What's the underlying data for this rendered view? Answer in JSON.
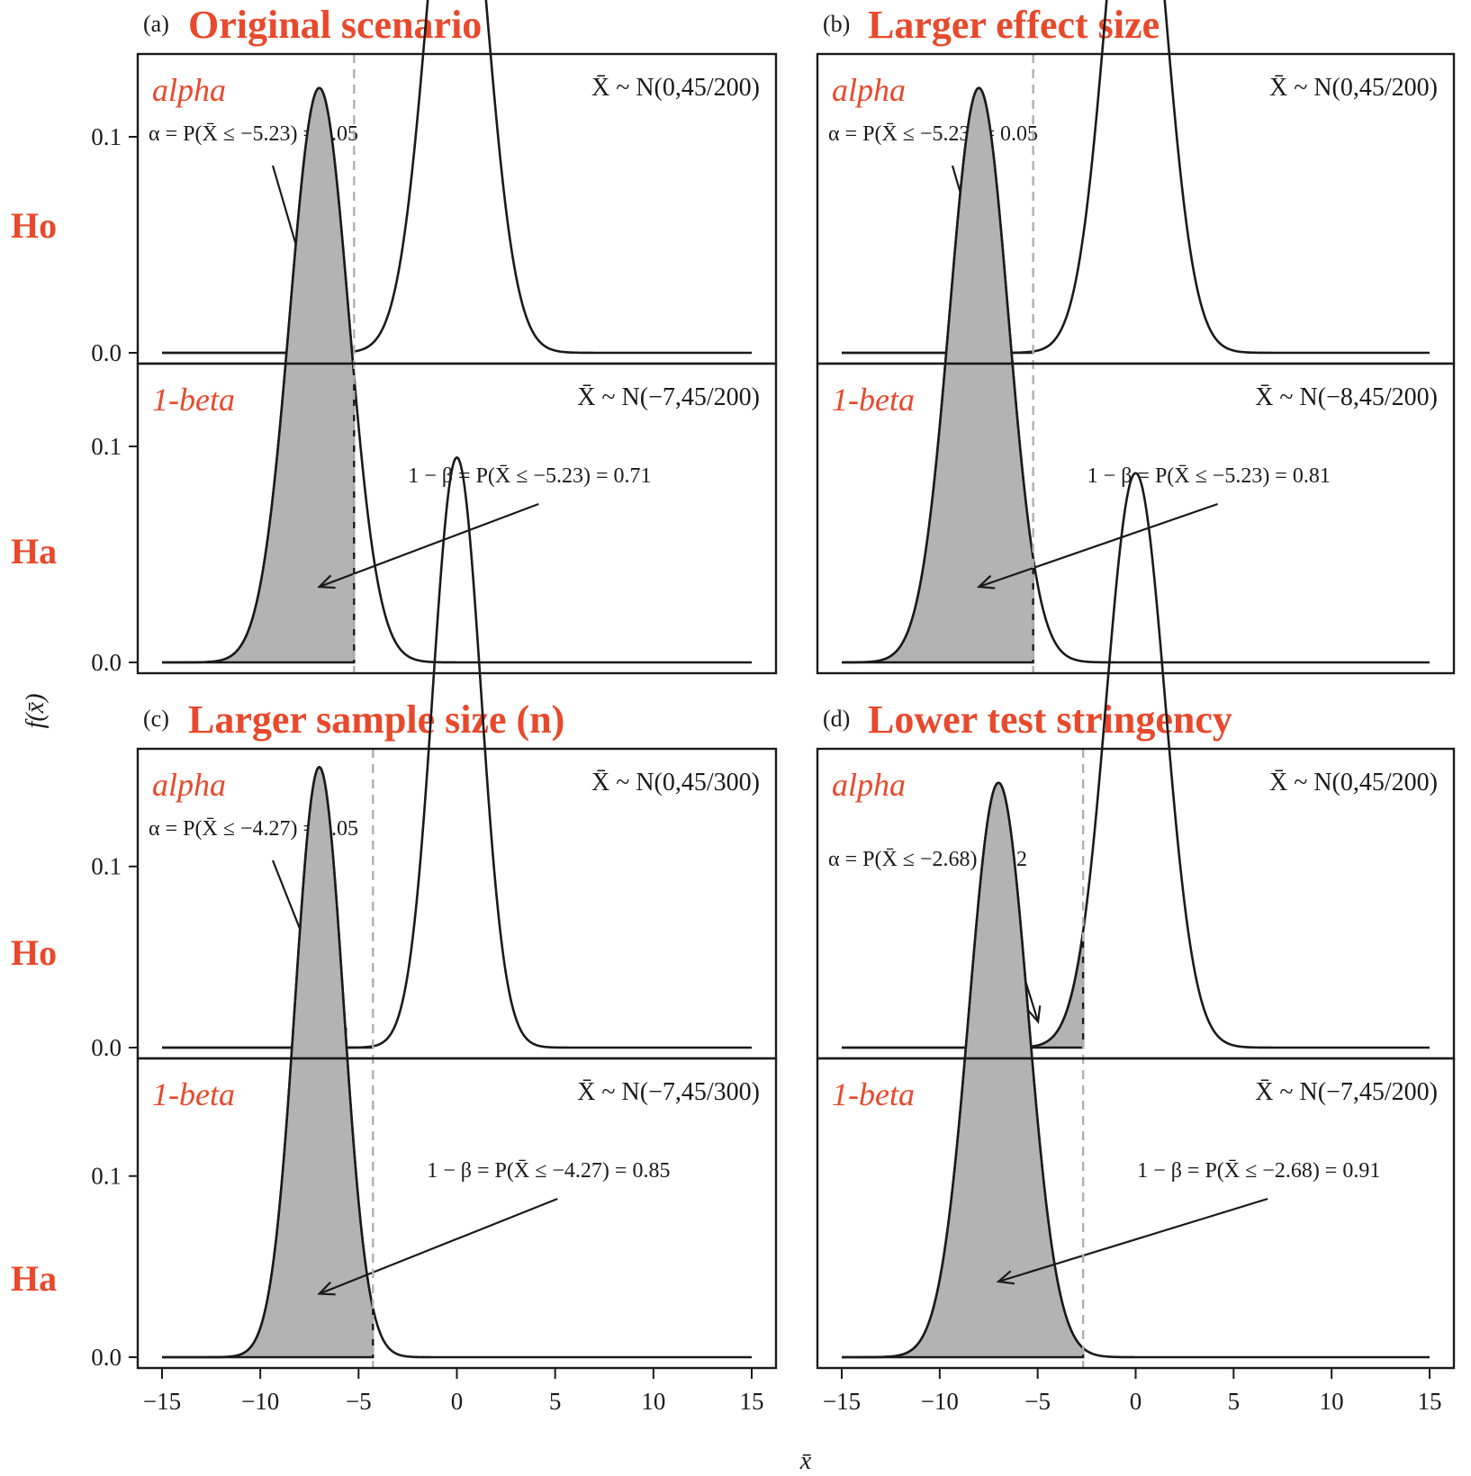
{
  "figure": {
    "ylabel": "f(x̄)",
    "xlabel": "x̄",
    "row_labels": [
      "Ho",
      "Ha",
      "Ho",
      "Ha"
    ]
  },
  "chart_data": [
    {
      "type": "area",
      "letter": "(a)",
      "title": "Original scenario",
      "critical_value": -5.23,
      "xlim": [
        -15,
        15
      ],
      "x_ticks": [
        -15,
        -10,
        -5,
        0,
        5,
        10,
        15
      ],
      "ylim_null": [
        0,
        0.13
      ],
      "ylim_alt": [
        0,
        0.13
      ],
      "y_ticks": [
        "0.0",
        "0.1"
      ],
      "null": {
        "tag": "alpha",
        "mean": 0,
        "var_label": "X̄ ~ N(0,45/200)",
        "annotation": "α = P(X̄ ≤ −5.23) = 0.05"
      },
      "alt": {
        "tag": "1-beta",
        "mean": -7,
        "var_label": "X̄ ~ N(−7,45/200)",
        "annotation": "1 − β = P(X̄ ≤ −5.23) = 0.71"
      }
    },
    {
      "type": "area",
      "letter": "(b)",
      "title": "Larger effect size",
      "critical_value": -5.23,
      "xlim": [
        -15,
        15
      ],
      "x_ticks": [
        -15,
        -10,
        -5,
        0,
        5,
        10,
        15
      ],
      "ylim_null": [
        0,
        0.13
      ],
      "ylim_alt": [
        0,
        0.13
      ],
      "y_ticks": [],
      "null": {
        "tag": "alpha",
        "mean": 0,
        "var_label": "X̄ ~ N(0,45/200)",
        "annotation": "α = P(X̄ ≤ −5.23) = 0.05"
      },
      "alt": {
        "tag": "1-beta",
        "mean": -8,
        "var_label": "X̄ ~ N(−8,45/200)",
        "annotation": "1 − β = P(X̄ ≤ −5.23) = 0.81"
      }
    },
    {
      "type": "area",
      "letter": "(c)",
      "title": "Larger sample size (n)",
      "critical_value": -4.27,
      "xlim": [
        -15,
        15
      ],
      "x_ticks": [
        -15,
        -10,
        -5,
        0,
        5,
        10,
        15
      ],
      "ylim_null": [
        0,
        0.155
      ],
      "ylim_alt": [
        0,
        0.155
      ],
      "y_ticks": [
        "0.0",
        "0.1"
      ],
      "null": {
        "tag": "alpha",
        "mean": 0,
        "var_label": "X̄ ~ N(0,45/300)",
        "annotation": "α = P(X̄ ≤ −4.27) = 0.05"
      },
      "alt": {
        "tag": "1-beta",
        "mean": -7,
        "var_label": "X̄ ~ N(−7,45/300)",
        "annotation": "1 − β = P(X̄ ≤ −4.27) = 0.85"
      }
    },
    {
      "type": "area",
      "letter": "(d)",
      "title": "Lower test stringency",
      "critical_value": -2.68,
      "xlim": [
        -15,
        15
      ],
      "x_ticks": [
        -15,
        -10,
        -5,
        0,
        5,
        10,
        15
      ],
      "ylim_null": [
        0,
        0.13
      ],
      "ylim_alt": [
        0,
        0.13
      ],
      "y_ticks": [],
      "null": {
        "tag": "alpha",
        "mean": 0,
        "var_label": "X̄ ~ N(0,45/200)",
        "annotation": "α = P(X̄ ≤ −2.68) = 0.2"
      },
      "alt": {
        "tag": "1-beta",
        "mean": -7,
        "var_label": "X̄ ~ N(−7,45/200)",
        "annotation": "1 − β = P(X̄ ≤ −2.68) = 0.91"
      }
    }
  ]
}
